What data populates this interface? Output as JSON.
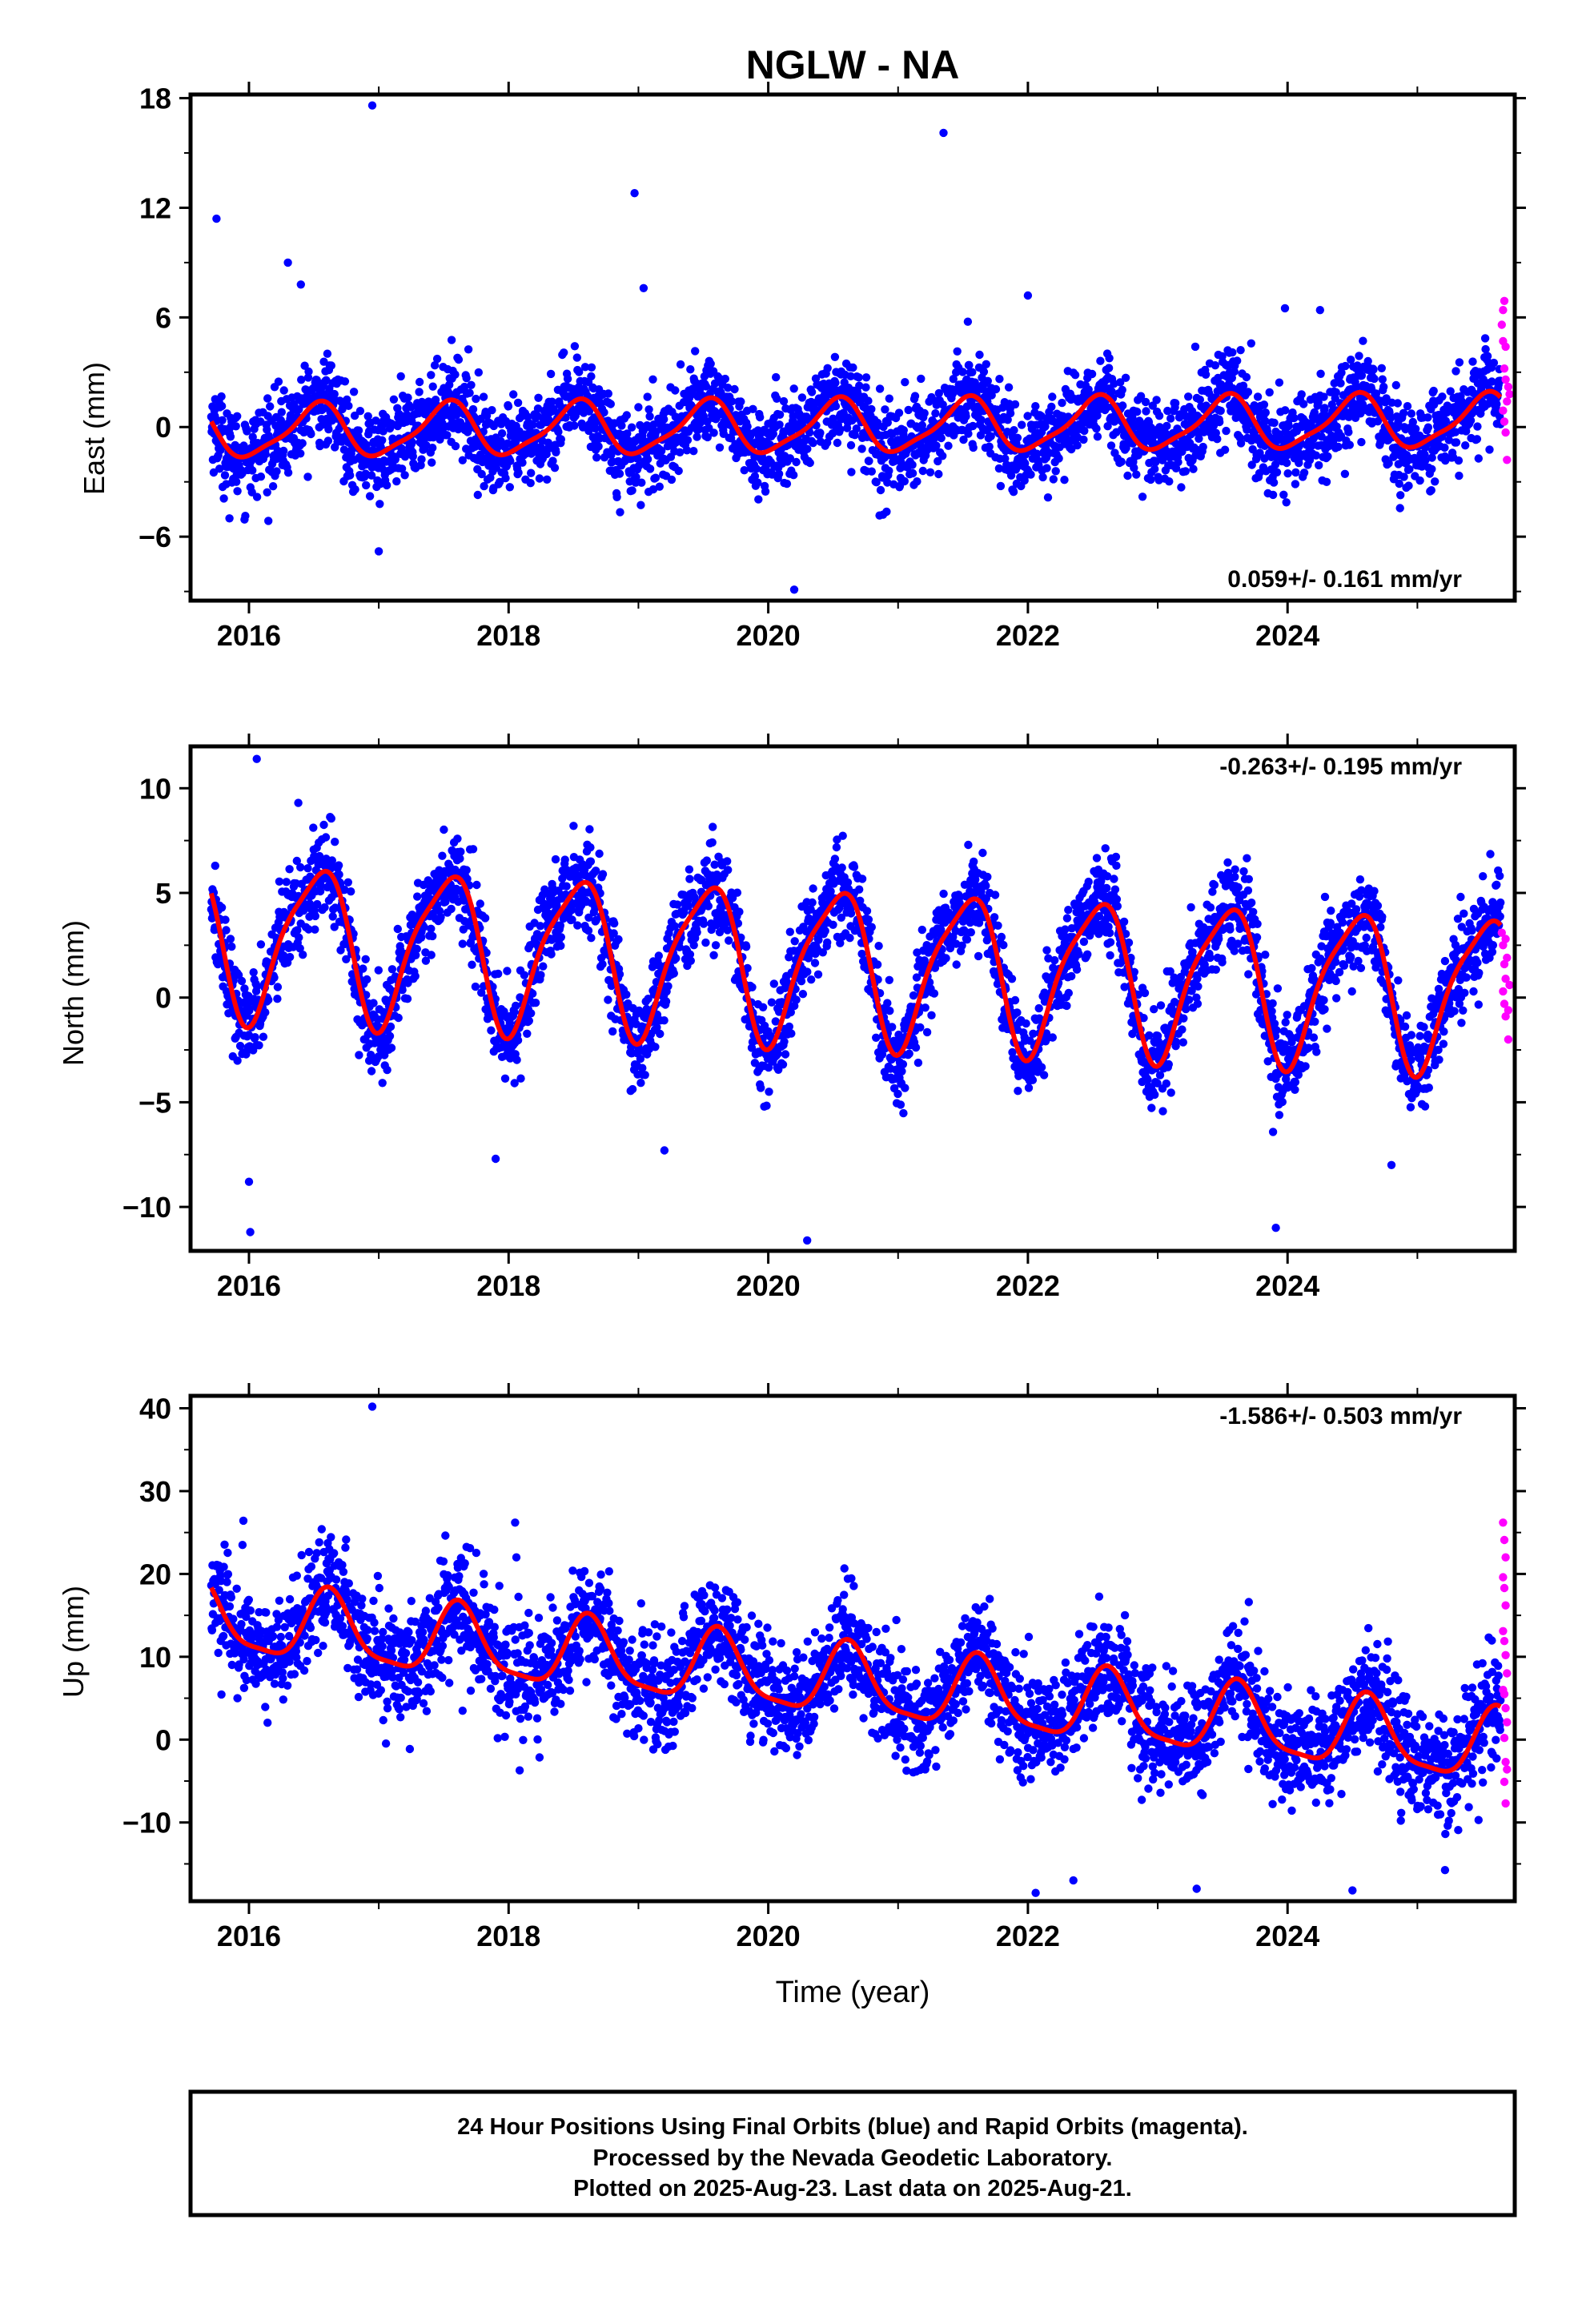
{
  "title": "NGLW - NA",
  "x_axis_label": "Time (year)",
  "footer": {
    "line1": "24 Hour Positions Using Final Orbits (blue) and Rapid Orbits (magenta).",
    "line2": "Processed by the Nevada Geodetic Laboratory.",
    "line3": "Plotted on 2025-Aug-23. Last data on 2025-Aug-21."
  },
  "colors": {
    "final_orbits": "#0000ff",
    "rapid_orbits": "#ff00ff",
    "model_fit": "#ff0000",
    "frame": "#000000"
  },
  "chart_data": [
    {
      "type": "scatter",
      "panel": "East",
      "ylabel": "East (mm)",
      "xlim": [
        2015.55,
        2025.75
      ],
      "ylim": [
        -9.5,
        18.2
      ],
      "xticks": [
        2016,
        2018,
        2020,
        2022,
        2024
      ],
      "yticks": [
        -6,
        0,
        6,
        12,
        18
      ],
      "rate_label": "0.059+/- 0.161 mm/yr",
      "rate_label_position": "bottom-right",
      "model": {
        "start": 2015.71,
        "end": 2025.64,
        "offset": 0.0,
        "trend_mm_per_yr": 0.059,
        "annual_amplitude": 1.4,
        "annual_peak_time": 0.52,
        "semiannual_amplitude": 0.35,
        "semiannual_phase": 0.1,
        "scatter_sd": 1.2
      },
      "outliers": [
        [
          2015.75,
          11.4
        ],
        [
          2016.95,
          17.6
        ],
        [
          2017.0,
          -6.8
        ],
        [
          2018.97,
          12.8
        ],
        [
          2019.04,
          7.6
        ],
        [
          2020.2,
          -8.9
        ],
        [
          2021.35,
          16.1
        ],
        [
          2022.0,
          7.2
        ],
        [
          2015.85,
          -5.0
        ],
        [
          2016.3,
          9.0
        ],
        [
          2016.4,
          7.8
        ],
        [
          2023.98,
          6.5
        ],
        [
          2024.25,
          6.4
        ]
      ],
      "rapid_points": [
        [
          2025.65,
          5.6
        ],
        [
          2025.66,
          6.4
        ],
        [
          2025.67,
          6.9
        ],
        [
          2025.66,
          4.7
        ],
        [
          2025.67,
          3.2
        ],
        [
          2025.68,
          2.6
        ],
        [
          2025.69,
          1.4
        ],
        [
          2025.66,
          0.9
        ],
        [
          2025.67,
          0.3
        ],
        [
          2025.68,
          -0.3
        ],
        [
          2025.69,
          -1.8
        ],
        [
          2025.7,
          2.2
        ],
        [
          2025.71,
          1.8
        ],
        [
          2025.68,
          4.4
        ]
      ]
    },
    {
      "type": "scatter",
      "panel": "North",
      "ylabel": "North (mm)",
      "xlim": [
        2015.55,
        2025.75
      ],
      "ylim": [
        -12.1,
        12.0
      ],
      "xticks": [
        2016,
        2018,
        2020,
        2022,
        2024
      ],
      "yticks": [
        -10,
        -5,
        0,
        5,
        10
      ],
      "rate_label": "-0.263+/- 0.195 mm/yr",
      "rate_label_position": "top-right",
      "model": {
        "start": 2015.71,
        "end": 2025.64,
        "offset": 1.6,
        "trend_mm_per_yr": -0.263,
        "annual_amplitude": 3.6,
        "annual_peak_time": 0.52,
        "semiannual_amplitude": 0.8,
        "semiannual_phase": 0.2,
        "scatter_sd": 1.1
      },
      "outliers": [
        [
          2016.06,
          11.4
        ],
        [
          2016.0,
          -8.8
        ],
        [
          2016.01,
          -11.2
        ],
        [
          2020.3,
          -11.6
        ],
        [
          2023.91,
          -11.0
        ],
        [
          2017.9,
          -7.7
        ],
        [
          2018.5,
          8.2
        ],
        [
          2016.38,
          9.3
        ],
        [
          2019.2,
          -7.3
        ],
        [
          2024.8,
          -8.0
        ]
      ],
      "rapid_points": [
        [
          2025.65,
          3.1
        ],
        [
          2025.66,
          2.5
        ],
        [
          2025.67,
          1.6
        ],
        [
          2025.68,
          0.9
        ],
        [
          2025.66,
          0.3
        ],
        [
          2025.67,
          -0.3
        ],
        [
          2025.68,
          -0.9
        ],
        [
          2025.7,
          -2.0
        ],
        [
          2025.69,
          1.9
        ],
        [
          2025.71,
          0.6
        ],
        [
          2025.7,
          -0.6
        ],
        [
          2025.68,
          2.8
        ]
      ]
    },
    {
      "type": "scatter",
      "panel": "Up",
      "ylabel": "Up (mm)",
      "xlim": [
        2015.55,
        2025.75
      ],
      "ylim": [
        -19.5,
        41.5
      ],
      "xticks": [
        2016,
        2018,
        2020,
        2022,
        2024
      ],
      "yticks": [
        -10,
        0,
        10,
        20,
        30,
        40
      ],
      "rate_label": "-1.586+/- 0.503 mm/yr",
      "rate_label_position": "top-right",
      "model": {
        "start": 2015.71,
        "end": 2025.64,
        "offset": 7.0,
        "trend_mm_per_yr": -1.586,
        "annual_amplitude": 4.2,
        "annual_peak_time": 0.62,
        "semiannual_amplitude": 1.1,
        "semiannual_phase": 0.1,
        "scatter_sd": 3.3
      },
      "outliers": [
        [
          2016.95,
          40.2
        ],
        [
          2018.05,
          26.2
        ],
        [
          2018.06,
          22.0
        ],
        [
          2016.56,
          25.4
        ],
        [
          2015.95,
          23.5
        ],
        [
          2023.58,
          13.7
        ],
        [
          2023.55,
          13.2
        ],
        [
          2022.06,
          -18.5
        ],
        [
          2024.5,
          -18.2
        ],
        [
          2022.35,
          -17.0
        ],
        [
          2023.3,
          -18.0
        ]
      ],
      "rapid_points": [
        [
          2025.66,
          26.2
        ],
        [
          2025.67,
          24.1
        ],
        [
          2025.68,
          22.0
        ],
        [
          2025.66,
          19.6
        ],
        [
          2025.67,
          18.3
        ],
        [
          2025.68,
          16.2
        ],
        [
          2025.66,
          13.1
        ],
        [
          2025.67,
          11.9
        ],
        [
          2025.68,
          10.2
        ],
        [
          2025.69,
          8.0
        ],
        [
          2025.66,
          6.0
        ],
        [
          2025.67,
          5.5
        ],
        [
          2025.68,
          3.8
        ],
        [
          2025.69,
          2.1
        ],
        [
          2025.67,
          0.2
        ],
        [
          2025.68,
          -2.7
        ],
        [
          2025.69,
          -3.6
        ],
        [
          2025.67,
          -5.1
        ],
        [
          2025.68,
          -7.7
        ]
      ]
    }
  ]
}
